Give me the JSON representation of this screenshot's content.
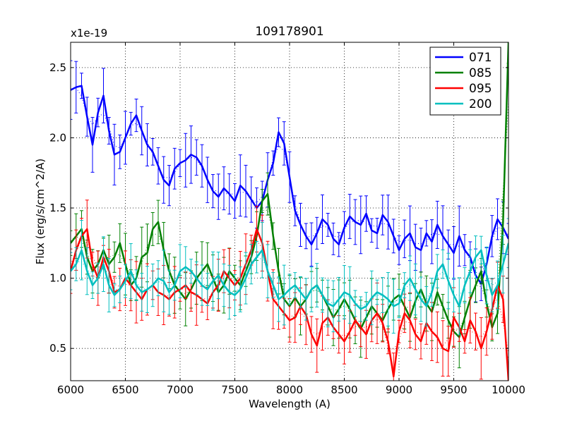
{
  "chart_data": {
    "type": "line",
    "title": "109178901",
    "xlabel": "Wavelength (A)",
    "ylabel": "Flux (erg/s/cm^2/A)",
    "y_scale_label": "x1e-19",
    "xlim": [
      6000,
      10000
    ],
    "ylim": [
      0.27,
      2.68
    ],
    "grid": true,
    "legend_position": "top-right",
    "x_ticks": [
      6000,
      6500,
      7000,
      7500,
      8000,
      8500,
      9000,
      9500,
      10000
    ],
    "x_tick_labels": [
      "6000",
      "6500",
      "7000",
      "7500",
      "8000",
      "8500",
      "9000",
      "9500",
      "10000"
    ],
    "y_ticks": [
      0.5,
      1.0,
      1.5,
      2.0,
      2.5
    ],
    "y_tick_labels": [
      "0.5",
      "1.0",
      "1.5",
      "2.0",
      "2.5"
    ],
    "x": [
      6000,
      6050,
      6100,
      6150,
      6200,
      6250,
      6300,
      6350,
      6400,
      6450,
      6500,
      6550,
      6600,
      6650,
      6700,
      6750,
      6800,
      6850,
      6900,
      6950,
      7000,
      7050,
      7100,
      7150,
      7200,
      7250,
      7300,
      7350,
      7400,
      7450,
      7500,
      7550,
      7600,
      7650,
      7700,
      7750,
      7800,
      7850,
      7900,
      7950,
      8000,
      8050,
      8100,
      8150,
      8200,
      8250,
      8300,
      8350,
      8400,
      8450,
      8500,
      8550,
      8600,
      8650,
      8700,
      8750,
      8800,
      8850,
      8900,
      8950,
      9000,
      9050,
      9100,
      9150,
      9200,
      9250,
      9300,
      9350,
      9400,
      9450,
      9500,
      9550,
      9600,
      9650,
      9700,
      9750,
      9800,
      9850,
      9900,
      9950,
      10000
    ],
    "series": [
      {
        "name": "071",
        "color": "#0000ff",
        "values": [
          2.34,
          2.36,
          2.37,
          2.15,
          1.95,
          2.18,
          2.3,
          2.05,
          1.88,
          1.9,
          2.0,
          2.1,
          2.16,
          2.05,
          1.95,
          1.9,
          1.8,
          1.7,
          1.66,
          1.78,
          1.82,
          1.84,
          1.88,
          1.86,
          1.8,
          1.7,
          1.62,
          1.58,
          1.64,
          1.6,
          1.55,
          1.66,
          1.62,
          1.56,
          1.5,
          1.55,
          1.7,
          1.82,
          2.04,
          1.96,
          1.72,
          1.48,
          1.38,
          1.3,
          1.24,
          1.32,
          1.42,
          1.38,
          1.28,
          1.24,
          1.36,
          1.44,
          1.4,
          1.38,
          1.46,
          1.34,
          1.32,
          1.45,
          1.4,
          1.3,
          1.2,
          1.28,
          1.32,
          1.22,
          1.2,
          1.32,
          1.26,
          1.38,
          1.3,
          1.24,
          1.18,
          1.3,
          1.2,
          1.15,
          1.02,
          0.96,
          1.1,
          1.3,
          1.42,
          1.36,
          1.28
        ]
      },
      {
        "name": "085",
        "color": "#008000",
        "values": [
          1.25,
          1.3,
          1.35,
          1.15,
          1.05,
          1.1,
          1.2,
          1.1,
          1.15,
          1.25,
          1.1,
          0.95,
          1.0,
          1.15,
          1.18,
          1.35,
          1.4,
          1.2,
          1.05,
          0.95,
          0.9,
          0.85,
          0.92,
          1.0,
          1.05,
          1.1,
          1.0,
          0.9,
          0.95,
          1.05,
          1.0,
          0.95,
          1.05,
          1.15,
          1.3,
          1.55,
          1.6,
          1.3,
          1.05,
          0.85,
          0.8,
          0.86,
          0.8,
          0.85,
          0.92,
          0.95,
          0.88,
          0.8,
          0.72,
          0.78,
          0.85,
          0.78,
          0.7,
          0.64,
          0.72,
          0.8,
          0.75,
          0.7,
          0.78,
          0.85,
          0.88,
          0.8,
          0.72,
          0.84,
          0.92,
          0.82,
          0.76,
          0.9,
          0.8,
          0.7,
          0.62,
          0.58,
          0.72,
          0.85,
          0.95,
          1.05,
          0.82,
          0.65,
          0.75,
          1.4,
          2.68
        ]
      },
      {
        "name": "095",
        "color": "#ff0000",
        "values": [
          1.05,
          1.2,
          1.3,
          1.35,
          1.1,
          1.0,
          1.15,
          1.05,
          0.9,
          0.92,
          1.0,
          0.95,
          0.9,
          0.85,
          0.92,
          0.95,
          0.9,
          0.88,
          0.85,
          0.9,
          0.92,
          0.95,
          0.9,
          0.88,
          0.85,
          0.82,
          0.9,
          0.95,
          1.05,
          1.0,
          0.95,
          1.0,
          1.1,
          1.2,
          1.35,
          1.25,
          1.05,
          0.85,
          0.8,
          0.75,
          0.7,
          0.72,
          0.8,
          0.74,
          0.6,
          0.52,
          0.68,
          0.72,
          0.65,
          0.6,
          0.55,
          0.62,
          0.7,
          0.65,
          0.6,
          0.7,
          0.75,
          0.68,
          0.55,
          0.3,
          0.62,
          0.75,
          0.7,
          0.6,
          0.55,
          0.68,
          0.62,
          0.58,
          0.5,
          0.48,
          0.72,
          0.65,
          0.55,
          0.7,
          0.62,
          0.5,
          0.62,
          0.78,
          0.95,
          0.85,
          0.27
        ]
      },
      {
        "name": "200",
        "color": "#00bfbf",
        "values": [
          1.05,
          1.1,
          1.2,
          1.05,
          0.95,
          1.0,
          1.1,
          0.95,
          0.88,
          0.92,
          0.98,
          1.05,
          0.95,
          0.9,
          0.92,
          0.95,
          1.0,
          0.98,
          0.9,
          0.95,
          1.05,
          1.08,
          1.05,
          1.0,
          0.95,
          0.92,
          0.98,
          1.02,
          0.95,
          0.9,
          0.88,
          0.92,
          1.0,
          1.1,
          1.15,
          1.2,
          1.05,
          0.95,
          0.85,
          0.88,
          0.92,
          0.95,
          0.9,
          0.85,
          0.92,
          0.95,
          0.88,
          0.82,
          0.8,
          0.85,
          0.9,
          0.88,
          0.82,
          0.78,
          0.8,
          0.86,
          0.9,
          0.88,
          0.85,
          0.8,
          0.82,
          0.95,
          1.0,
          0.92,
          0.85,
          0.8,
          0.9,
          1.05,
          1.1,
          0.98,
          0.88,
          0.8,
          0.95,
          1.05,
          1.15,
          1.2,
          1.02,
          0.88,
          0.95,
          1.1,
          1.25
        ]
      }
    ]
  }
}
